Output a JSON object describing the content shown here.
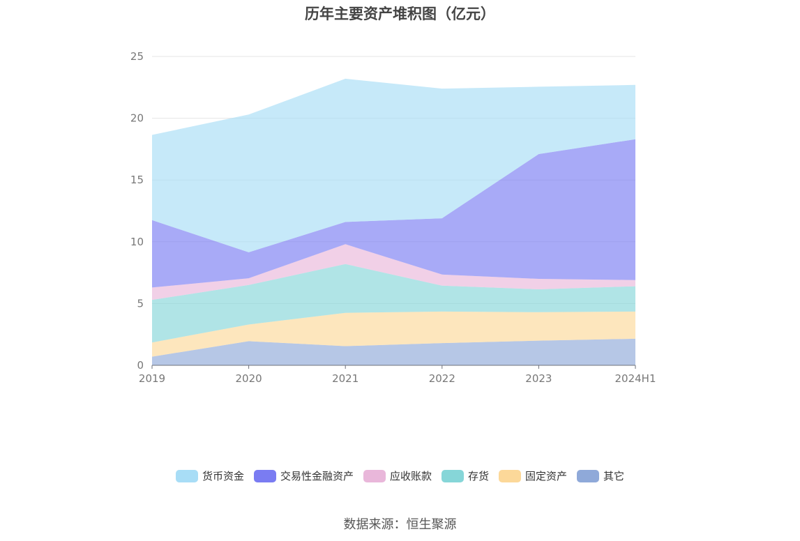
{
  "chart_data": {
    "type": "area",
    "stacked": true,
    "title": "历年主要资产堆积图（亿元）",
    "xlabel": "",
    "ylabel": "",
    "categories": [
      "2019",
      "2020",
      "2021",
      "2022",
      "2023",
      "2024H1"
    ],
    "ylim": [
      0,
      25
    ],
    "yticks": [
      "0",
      "5",
      "10",
      "15",
      "20",
      "25"
    ],
    "grid": true,
    "legend_position": "bottom",
    "series": [
      {
        "name": "其它",
        "color": "#8fa9d9",
        "values": [
          0.7,
          1.95,
          1.55,
          1.8,
          2.0,
          2.15
        ]
      },
      {
        "name": "固定资产",
        "color": "#fcd899",
        "values": [
          1.15,
          1.35,
          2.7,
          2.55,
          2.3,
          2.2
        ]
      },
      {
        "name": "存货",
        "color": "#86d6d8",
        "values": [
          3.45,
          3.2,
          3.95,
          2.1,
          1.85,
          2.05
        ]
      },
      {
        "name": "应收账款",
        "color": "#e9b7da",
        "values": [
          1.0,
          0.55,
          1.6,
          0.9,
          0.85,
          0.5
        ]
      },
      {
        "name": "交易性金融资产",
        "color": "#7a7cf2",
        "values": [
          5.45,
          2.1,
          1.8,
          4.55,
          10.1,
          11.4
        ]
      },
      {
        "name": "货币资金",
        "color": "#a8ddf6",
        "values": [
          6.9,
          11.15,
          11.6,
          10.5,
          5.45,
          4.4
        ]
      }
    ]
  },
  "legend": [
    {
      "name": "货币资金",
      "color": "#a8ddf6"
    },
    {
      "name": "交易性金融资产",
      "color": "#7a7cf2"
    },
    {
      "name": "应收账款",
      "color": "#e9b7da"
    },
    {
      "name": "存货",
      "color": "#86d6d8"
    },
    {
      "name": "固定资产",
      "color": "#fcd899"
    },
    {
      "name": "其它",
      "color": "#8fa9d9"
    }
  ],
  "source": "数据来源：恒生聚源"
}
